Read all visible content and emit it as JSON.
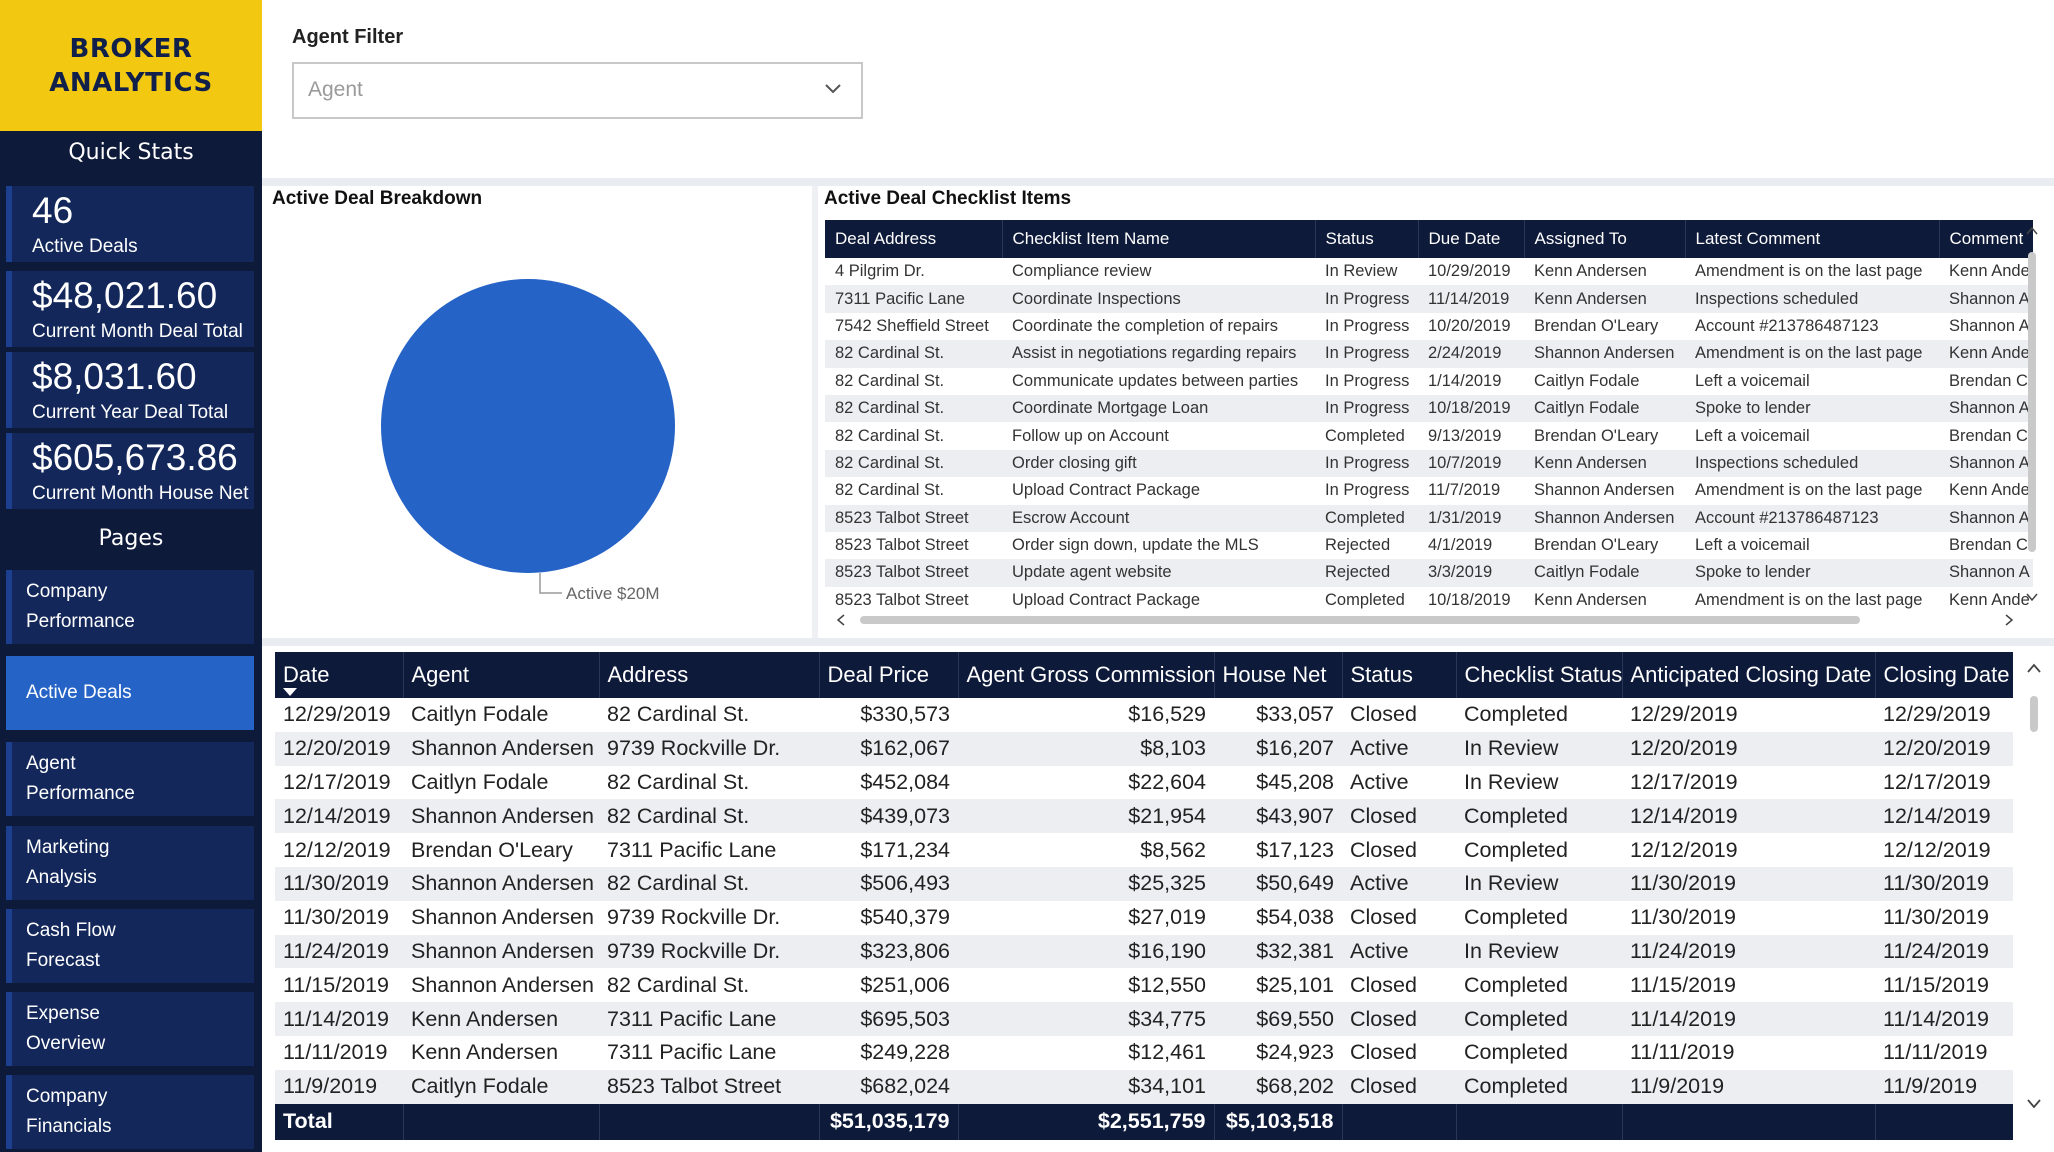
{
  "brand": {
    "title": "BROKER\nANALYTICS",
    "color": "#f2c811"
  },
  "sidebar": {
    "quick_stats_heading": "Quick Stats",
    "stats": [
      {
        "value": "46",
        "label": "Active Deals"
      },
      {
        "value": "$48,021.60",
        "label": "Current Month Deal Total"
      },
      {
        "value": "$8,031.60",
        "label": "Current Year Deal Total"
      },
      {
        "value": "$605,673.86",
        "label": "Current Month House Net"
      }
    ],
    "pages_heading": "Pages",
    "pages": [
      {
        "label": "Company Performance",
        "active": false
      },
      {
        "label": "Active Deals",
        "active": true
      },
      {
        "label": "Agent Performance",
        "active": false
      },
      {
        "label": "Marketing Analysis",
        "active": false
      },
      {
        "label": "Cash Flow Forecast",
        "active": false
      },
      {
        "label": "Expense Overview",
        "active": false
      },
      {
        "label": "Company Financials",
        "active": false
      }
    ]
  },
  "filter": {
    "title": "Agent Filter",
    "placeholder": "Agent",
    "icon": "chevron-down-icon"
  },
  "breakdown": {
    "title": "Active Deal Breakdown",
    "slice_label": "Active $20M",
    "color": "#2563c6"
  },
  "checklist": {
    "title": "Active Deal Checklist Items",
    "columns": [
      "Deal Address",
      "Checklist Item Name",
      "Status",
      "Due Date",
      "Assigned To",
      "Latest Comment",
      "Comment"
    ],
    "rows": [
      [
        "4 Pilgrim Dr.",
        "Compliance review",
        "In Review",
        "10/29/2019",
        "Kenn Andersen",
        "Amendment is on the last page",
        "Kenn Ande"
      ],
      [
        "7311 Pacific Lane",
        "Coordinate Inspections",
        "In Progress",
        "11/14/2019",
        "Kenn Andersen",
        "Inspections scheduled",
        "Shannon A"
      ],
      [
        "7542 Sheffield Street",
        "Coordinate the completion of repairs",
        "In Progress",
        "10/20/2019",
        "Brendan O'Leary",
        "Account #213786487123",
        "Shannon A"
      ],
      [
        "82 Cardinal St.",
        "Assist in negotiations regarding repairs",
        "In Progress",
        "2/24/2019",
        "Shannon Andersen",
        "Amendment is on the last page",
        "Kenn Ande"
      ],
      [
        "82 Cardinal St.",
        "Communicate updates between parties",
        "In Progress",
        "1/14/2019",
        "Caitlyn Fodale",
        "Left a voicemail",
        "Brendan C"
      ],
      [
        "82 Cardinal St.",
        "Coordinate Mortgage Loan",
        "In Progress",
        "10/18/2019",
        "Caitlyn Fodale",
        "Spoke to lender",
        "Shannon A"
      ],
      [
        "82 Cardinal St.",
        "Follow up on Account",
        "Completed",
        "9/13/2019",
        "Brendan O'Leary",
        "Left a voicemail",
        "Brendan C"
      ],
      [
        "82 Cardinal St.",
        "Order closing gift",
        "In Progress",
        "10/7/2019",
        "Kenn Andersen",
        "Inspections scheduled",
        "Shannon A"
      ],
      [
        "82 Cardinal St.",
        "Upload Contract Package",
        "In Progress",
        "11/7/2019",
        "Shannon Andersen",
        "Amendment is on the last page",
        "Kenn Ande"
      ],
      [
        "8523 Talbot Street",
        "Escrow Account",
        "Completed",
        "1/31/2019",
        "Shannon Andersen",
        "Account #213786487123",
        "Shannon A"
      ],
      [
        "8523 Talbot Street",
        "Order sign down, update the MLS",
        "Rejected",
        "4/1/2019",
        "Brendan O'Leary",
        "Left a voicemail",
        "Brendan C"
      ],
      [
        "8523 Talbot Street",
        "Update agent website",
        "Rejected",
        "3/3/2019",
        "Caitlyn Fodale",
        "Spoke to lender",
        "Shannon A"
      ],
      [
        "8523 Talbot Street",
        "Upload Contract Package",
        "Completed",
        "10/18/2019",
        "Kenn Andersen",
        "Amendment is on the last page",
        "Kenn Ande"
      ]
    ]
  },
  "deals": {
    "columns": [
      "Date",
      "Agent",
      "Address",
      "Deal Price",
      "Agent Gross Commission",
      "House Net",
      "Status",
      "Checklist Status",
      "Anticipated Closing Date",
      "Closing Date"
    ],
    "rows": [
      [
        "12/29/2019",
        "Caitlyn Fodale",
        "82 Cardinal St.",
        "$330,573",
        "$16,529",
        "$33,057",
        "Closed",
        "Completed",
        "12/29/2019",
        "12/29/2019"
      ],
      [
        "12/20/2019",
        "Shannon Andersen",
        "9739 Rockville Dr.",
        "$162,067",
        "$8,103",
        "$16,207",
        "Active",
        "In Review",
        "12/20/2019",
        "12/20/2019"
      ],
      [
        "12/17/2019",
        "Caitlyn Fodale",
        "82 Cardinal St.",
        "$452,084",
        "$22,604",
        "$45,208",
        "Active",
        "In Review",
        "12/17/2019",
        "12/17/2019"
      ],
      [
        "12/14/2019",
        "Shannon Andersen",
        "82 Cardinal St.",
        "$439,073",
        "$21,954",
        "$43,907",
        "Closed",
        "Completed",
        "12/14/2019",
        "12/14/2019"
      ],
      [
        "12/12/2019",
        "Brendan O'Leary",
        "7311 Pacific Lane",
        "$171,234",
        "$8,562",
        "$17,123",
        "Closed",
        "Completed",
        "12/12/2019",
        "12/12/2019"
      ],
      [
        "11/30/2019",
        "Shannon Andersen",
        "82 Cardinal St.",
        "$506,493",
        "$25,325",
        "$50,649",
        "Active",
        "In Review",
        "11/30/2019",
        "11/30/2019"
      ],
      [
        "11/30/2019",
        "Shannon Andersen",
        "9739 Rockville Dr.",
        "$540,379",
        "$27,019",
        "$54,038",
        "Closed",
        "Completed",
        "11/30/2019",
        "11/30/2019"
      ],
      [
        "11/24/2019",
        "Shannon Andersen",
        "9739 Rockville Dr.",
        "$323,806",
        "$16,190",
        "$32,381",
        "Active",
        "In Review",
        "11/24/2019",
        "11/24/2019"
      ],
      [
        "11/15/2019",
        "Shannon Andersen",
        "82 Cardinal St.",
        "$251,006",
        "$12,550",
        "$25,101",
        "Closed",
        "Completed",
        "11/15/2019",
        "11/15/2019"
      ],
      [
        "11/14/2019",
        "Kenn Andersen",
        "7311 Pacific Lane",
        "$695,503",
        "$34,775",
        "$69,550",
        "Closed",
        "Completed",
        "11/14/2019",
        "11/14/2019"
      ],
      [
        "11/11/2019",
        "Kenn Andersen",
        "7311 Pacific Lane",
        "$249,228",
        "$12,461",
        "$24,923",
        "Closed",
        "Completed",
        "11/11/2019",
        "11/11/2019"
      ],
      [
        "11/9/2019",
        "Caitlyn Fodale",
        "8523 Talbot Street",
        "$682,024",
        "$34,101",
        "$68,202",
        "Closed",
        "Completed",
        "11/9/2019",
        "11/9/2019"
      ]
    ],
    "total": {
      "label": "Total",
      "deal_price": "$51,035,179",
      "agent_gross_commission": "$2,551,759",
      "house_net": "$5,103,518"
    }
  },
  "colors": {
    "navy": "#0e1a3a",
    "nav_tile": "#13275a",
    "active_blue": "#2563c6",
    "alt_row": "#eceef1"
  }
}
